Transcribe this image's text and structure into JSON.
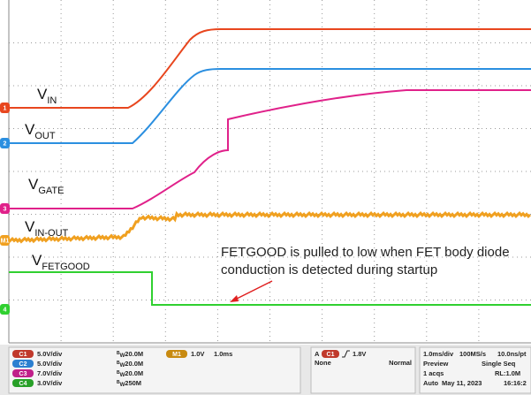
{
  "traces": [
    {
      "main": "V",
      "sub": "IN"
    },
    {
      "main": "V",
      "sub": "OUT"
    },
    {
      "main": "V",
      "sub": "GATE"
    },
    {
      "main": "V",
      "sub": "IN-OUT"
    },
    {
      "main": "V",
      "sub": "FETGOOD"
    }
  ],
  "markers": [
    "1",
    "2",
    "3",
    "M1",
    "4"
  ],
  "annotation": [
    "FETGOOD is pulled to low when FET body diode",
    "conduction is detected during startup"
  ],
  "status": {
    "channels": [
      {
        "tag": "C1",
        "scale": "5.0V/div",
        "bw": "20.0M"
      },
      {
        "tag": "C2",
        "scale": "5.0V/div",
        "bw": "20.0M"
      },
      {
        "tag": "C3",
        "scale": "7.0V/div",
        "bw": "20.0M"
      },
      {
        "tag": "C4",
        "scale": "3.0V/div",
        "bw": "250M"
      }
    ],
    "bw_prefix": "B",
    "bw_sub": "W",
    "math": {
      "tag": "M1",
      "scale": "1.0V",
      "time": "1.0ms"
    },
    "trigger": {
      "mode": "A",
      "tag": "C1",
      "level": "1.8V",
      "coupling": "None",
      "type": "Normal"
    },
    "acq": [
      [
        "1.0ms/div",
        "100MS/s",
        "10.0ns/pt"
      ],
      [
        "Preview",
        "Single Seq"
      ],
      [
        "1 acqs",
        "RL:1.0M"
      ],
      [
        "Auto",
        "May 11, 2023",
        "16:16:2"
      ]
    ]
  }
}
